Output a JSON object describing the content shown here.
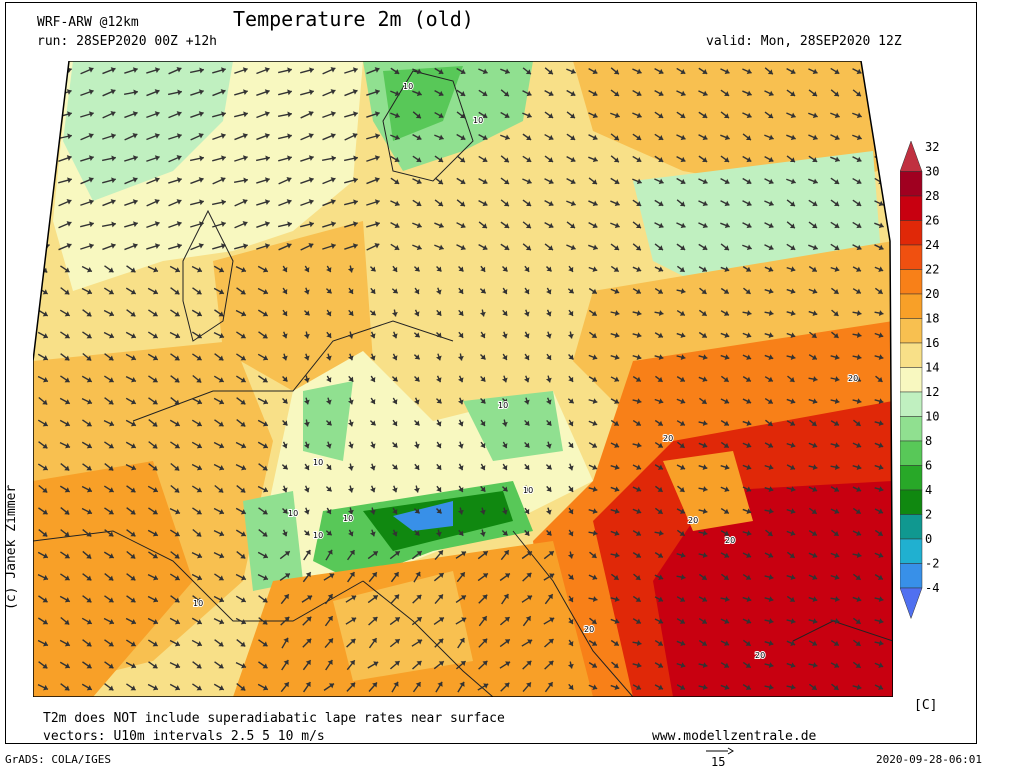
{
  "header": {
    "model": "WRF-ARW @12km",
    "run": "run: 28SEP2020 00Z +12h",
    "title": "Temperature 2m (old)",
    "valid": "valid: Mon, 28SEP2020 12Z"
  },
  "footer": {
    "note1": "T2m does NOT include superadiabatic lape rates near surface",
    "note2": "vectors: U10m intervals 2.5 5 10 m/s",
    "website": "www.modellzentrale.de",
    "copyright": "(c) Janek Zimmer",
    "grads": "GrADS: COLA/IGES",
    "vector_ref": "15",
    "timestamp": "2020-09-28-06:01"
  },
  "colorbar": {
    "unit": "[C]",
    "labels": [
      "32",
      "30",
      "28",
      "26",
      "24",
      "22",
      "20",
      "18",
      "16",
      "14",
      "12",
      "10",
      "8",
      "6",
      "4",
      "2",
      "0",
      "-2",
      "-4"
    ],
    "colors": [
      "#c03040",
      "#a00020",
      "#c80010",
      "#e02808",
      "#f05010",
      "#f88018",
      "#f8a028",
      "#f8c050",
      "#f8e088",
      "#f8f8c0",
      "#c0f0c0",
      "#90e090",
      "#58c858",
      "#28a828",
      "#108810",
      "#109890",
      "#20b0d0",
      "#3890e8",
      "#5070f0"
    ]
  },
  "map_labels": [
    "10",
    "10",
    "10",
    "10",
    "10",
    "10",
    "10",
    "10",
    "10",
    "20",
    "20",
    "20",
    "20",
    "20",
    "20"
  ]
}
